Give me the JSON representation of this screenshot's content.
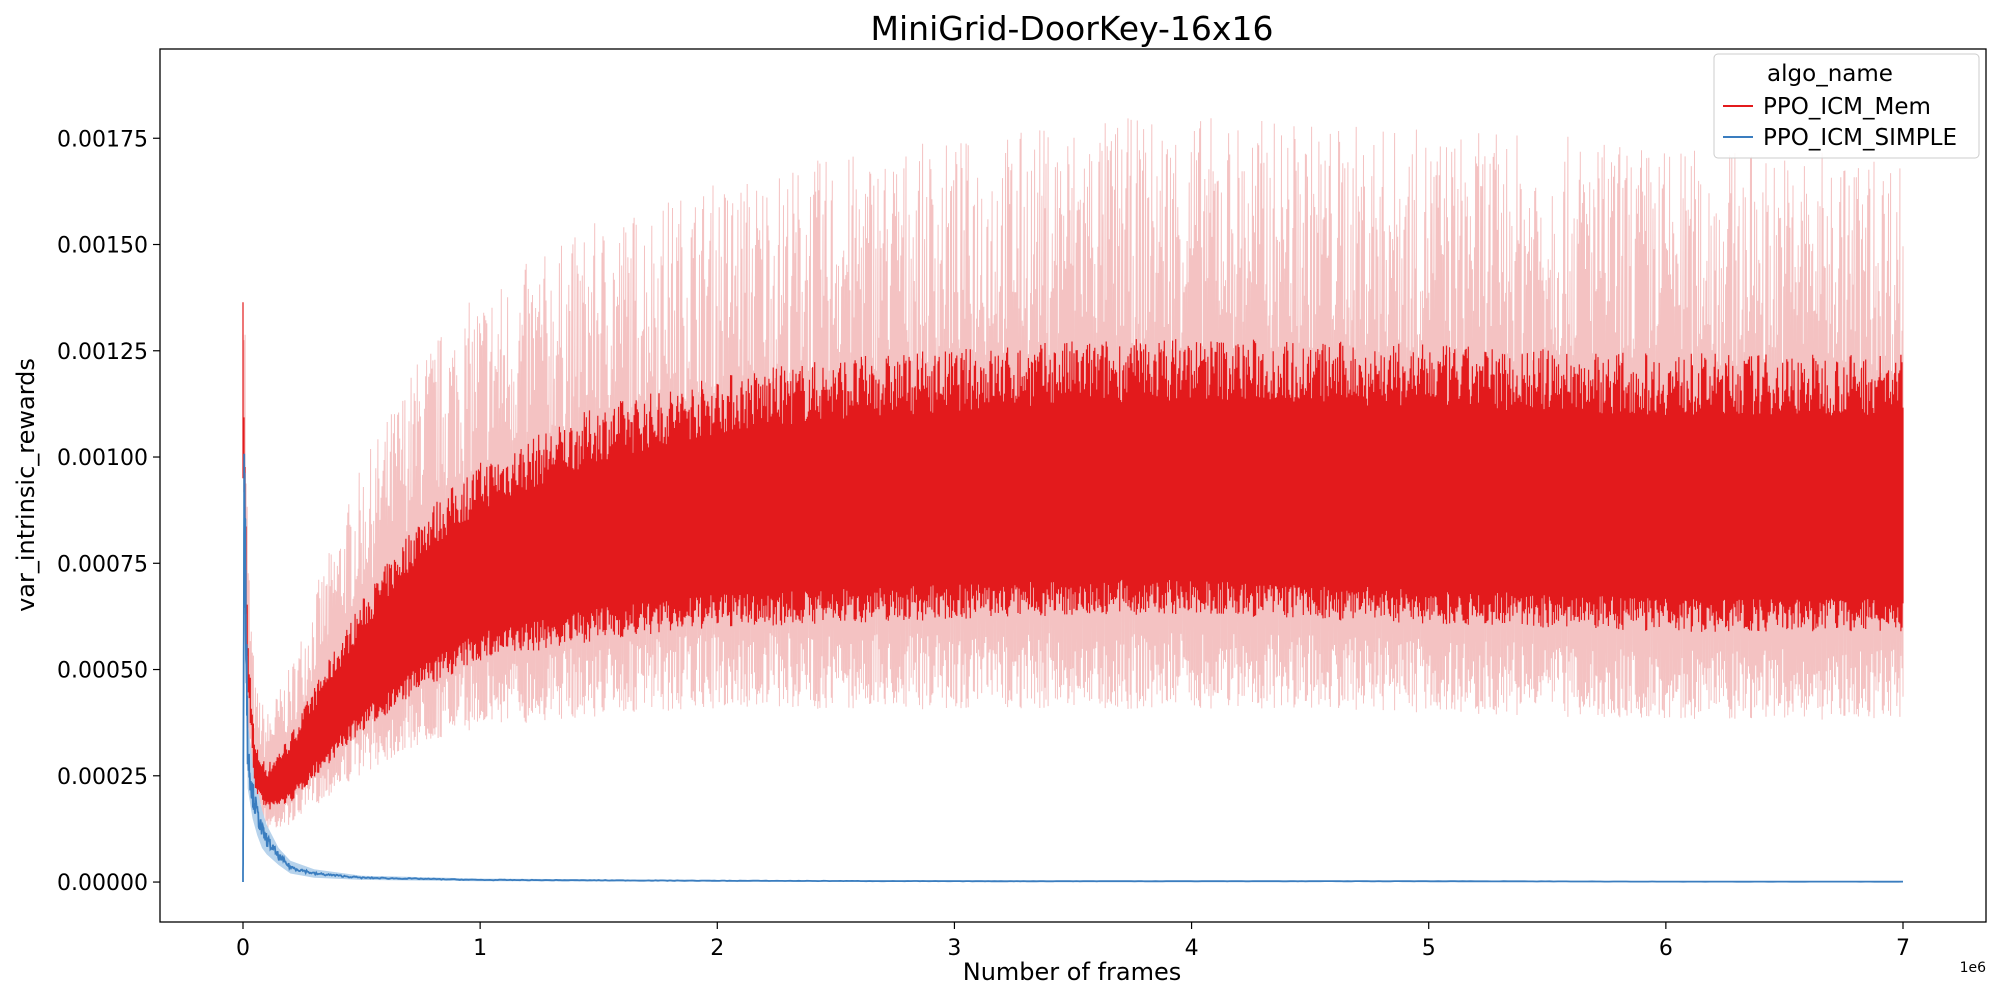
{
  "chart_data": {
    "type": "line",
    "title": "MiniGrid-DoorKey-16x16",
    "xlabel": "Number of frames",
    "ylabel": "var_intrinsic_rewards",
    "x_offset_label": "1e6",
    "xlim": [
      -0.35,
      7.35
    ],
    "ylim": [
      -9.4e-05,
      0.00196
    ],
    "x_ticks": [
      0,
      1,
      2,
      3,
      4,
      5,
      6,
      7
    ],
    "x_tick_labels": [
      "0",
      "1",
      "2",
      "3",
      "4",
      "5",
      "6",
      "7"
    ],
    "y_ticks": [
      0.0,
      0.00025,
      0.0005,
      0.00075,
      0.001,
      0.00125,
      0.0015,
      0.00175
    ],
    "y_tick_labels": [
      "0.00000",
      "0.00025",
      "0.00050",
      "0.00075",
      "0.00100",
      "0.00125",
      "0.00150",
      "0.00175"
    ],
    "grid": false,
    "legend": {
      "title": "algo_name",
      "position": "top-right"
    },
    "series": [
      {
        "name": "PPO_ICM_Mem",
        "color": "#e31a1c",
        "band_color": "#f4c2c2",
        "x": [
          0,
          0.02,
          0.05,
          0.1,
          0.2,
          0.3,
          0.5,
          0.75,
          1.0,
          1.5,
          2.0,
          2.5,
          3.0,
          3.5,
          4.0,
          4.5,
          5.0,
          5.5,
          6.0,
          6.5,
          7.0
        ],
        "line_low": [
          0.00096,
          0.00045,
          0.00022,
          0.00017,
          0.00019,
          0.00025,
          0.00036,
          0.00046,
          0.00053,
          0.00058,
          0.00061,
          0.00062,
          0.00063,
          0.00064,
          0.00064,
          0.00063,
          0.00062,
          0.00061,
          0.0006,
          0.0006,
          0.0006
        ],
        "line_high": [
          0.00135,
          0.00058,
          0.00032,
          0.00027,
          0.00034,
          0.00045,
          0.00065,
          0.00085,
          0.00097,
          0.0011,
          0.00117,
          0.00121,
          0.00123,
          0.00125,
          0.00126,
          0.00125,
          0.00124,
          0.00123,
          0.00122,
          0.00122,
          0.00122
        ],
        "band_low": [
          0.0009,
          0.0004,
          0.00018,
          0.00014,
          0.00016,
          0.00021,
          0.0003,
          0.00038,
          0.00043,
          0.00046,
          0.00048,
          0.00048,
          0.00048,
          0.00048,
          0.00048,
          0.00048,
          0.00047,
          0.00046,
          0.00045,
          0.00045,
          0.00045
        ],
        "band_high": [
          0.00157,
          0.0007,
          0.0004,
          0.00034,
          0.00043,
          0.00058,
          0.00083,
          0.00106,
          0.00118,
          0.00132,
          0.0014,
          0.00145,
          0.00148,
          0.00152,
          0.00153,
          0.00152,
          0.0015,
          0.00149,
          0.00147,
          0.00146,
          0.00145
        ]
      },
      {
        "name": "PPO_ICM_SIMPLE",
        "color": "#3a7dbf",
        "band_color": "#b7d3ec",
        "x": [
          0,
          0.005,
          0.02,
          0.04,
          0.06,
          0.08,
          0.1,
          0.15,
          0.2,
          0.3,
          0.5,
          1.0,
          2.0,
          3.0,
          4.0,
          5.0,
          6.0,
          7.0
        ],
        "values": [
          0.0,
          0.00096,
          0.0003,
          0.00021,
          0.00016,
          0.00012,
          0.0001,
          6e-05,
          3.5e-05,
          2e-05,
          1e-05,
          5e-06,
          3e-06,
          2e-06,
          2e-06,
          2e-06,
          1e-06,
          1e-06
        ],
        "band_low": [
          0.0,
          0.0008,
          0.00022,
          0.00015,
          0.00011,
          8e-05,
          6.5e-05,
          4e-05,
          2e-05,
          1e-05,
          5e-06,
          2e-06,
          1e-06,
          1e-06,
          1e-06,
          1e-06,
          0.0,
          0.0
        ],
        "band_high": [
          0.0,
          0.00105,
          0.00038,
          0.00028,
          0.00022,
          0.00017,
          0.000135,
          8e-05,
          5e-05,
          3e-05,
          1.5e-05,
          8e-06,
          5e-06,
          4e-06,
          3e-06,
          3e-06,
          2e-06,
          2e-06
        ]
      }
    ]
  }
}
